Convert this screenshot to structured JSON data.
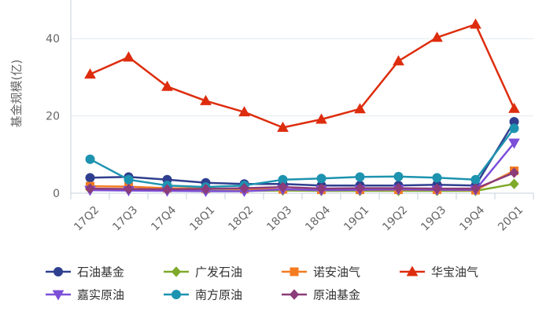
{
  "chart_data": {
    "type": "line",
    "title": "",
    "xlabel": "",
    "ylabel": "基金规模(亿)",
    "categories": [
      "17Q2",
      "17Q3",
      "17Q4",
      "18Q1",
      "18Q2",
      "18Q3",
      "18Q4",
      "19Q1",
      "19Q2",
      "19Q3",
      "19Q4",
      "20Q1"
    ],
    "ylim": [
      0,
      50
    ],
    "yticks": [
      0,
      20,
      40
    ],
    "grid": true,
    "legend_position": "bottom",
    "series": [
      {
        "name": "石油基金",
        "color": "#2f3f8f",
        "marker": "circle",
        "values": [
          4.0,
          4.2,
          3.5,
          2.7,
          2.4,
          2.4,
          2.0,
          2.0,
          2.0,
          2.2,
          2.0,
          18.5
        ]
      },
      {
        "name": "广发石油",
        "color": "#7ea92a",
        "marker": "diamond",
        "values": [
          1.0,
          0.9,
          0.8,
          0.6,
          0.6,
          0.7,
          0.6,
          0.6,
          0.6,
          0.6,
          0.6,
          2.4
        ]
      },
      {
        "name": "诺安油气",
        "color": "#f47b20",
        "marker": "square",
        "values": [
          1.8,
          1.7,
          1.3,
          1.2,
          1.1,
          1.0,
          0.9,
          0.9,
          0.9,
          0.9,
          0.8,
          5.8
        ]
      },
      {
        "name": "华宝油气",
        "color": "#dd2d0e",
        "marker": "triangle",
        "values": [
          30.8,
          35.2,
          27.6,
          23.9,
          21.0,
          17.0,
          19.1,
          21.8,
          34.2,
          40.3,
          43.7,
          21.9
        ]
      },
      {
        "name": "嘉实原油",
        "color": "#7c4fd9",
        "marker": "triangle-down",
        "values": [
          0.8,
          0.7,
          0.6,
          0.5,
          0.5,
          1.0,
          0.8,
          0.9,
          1.0,
          0.9,
          0.9,
          13.0
        ]
      },
      {
        "name": "南方原油",
        "color": "#1d93b0",
        "marker": "circle",
        "values": [
          8.8,
          3.5,
          2.0,
          1.6,
          2.0,
          3.5,
          3.8,
          4.2,
          4.3,
          4.0,
          3.5,
          16.8
        ]
      },
      {
        "name": "原油基金",
        "color": "#8b3c7a",
        "marker": "diamond",
        "values": [
          1.2,
          1.1,
          1.0,
          1.1,
          1.3,
          1.6,
          1.2,
          1.3,
          1.3,
          1.2,
          1.2,
          5.3
        ]
      }
    ]
  }
}
